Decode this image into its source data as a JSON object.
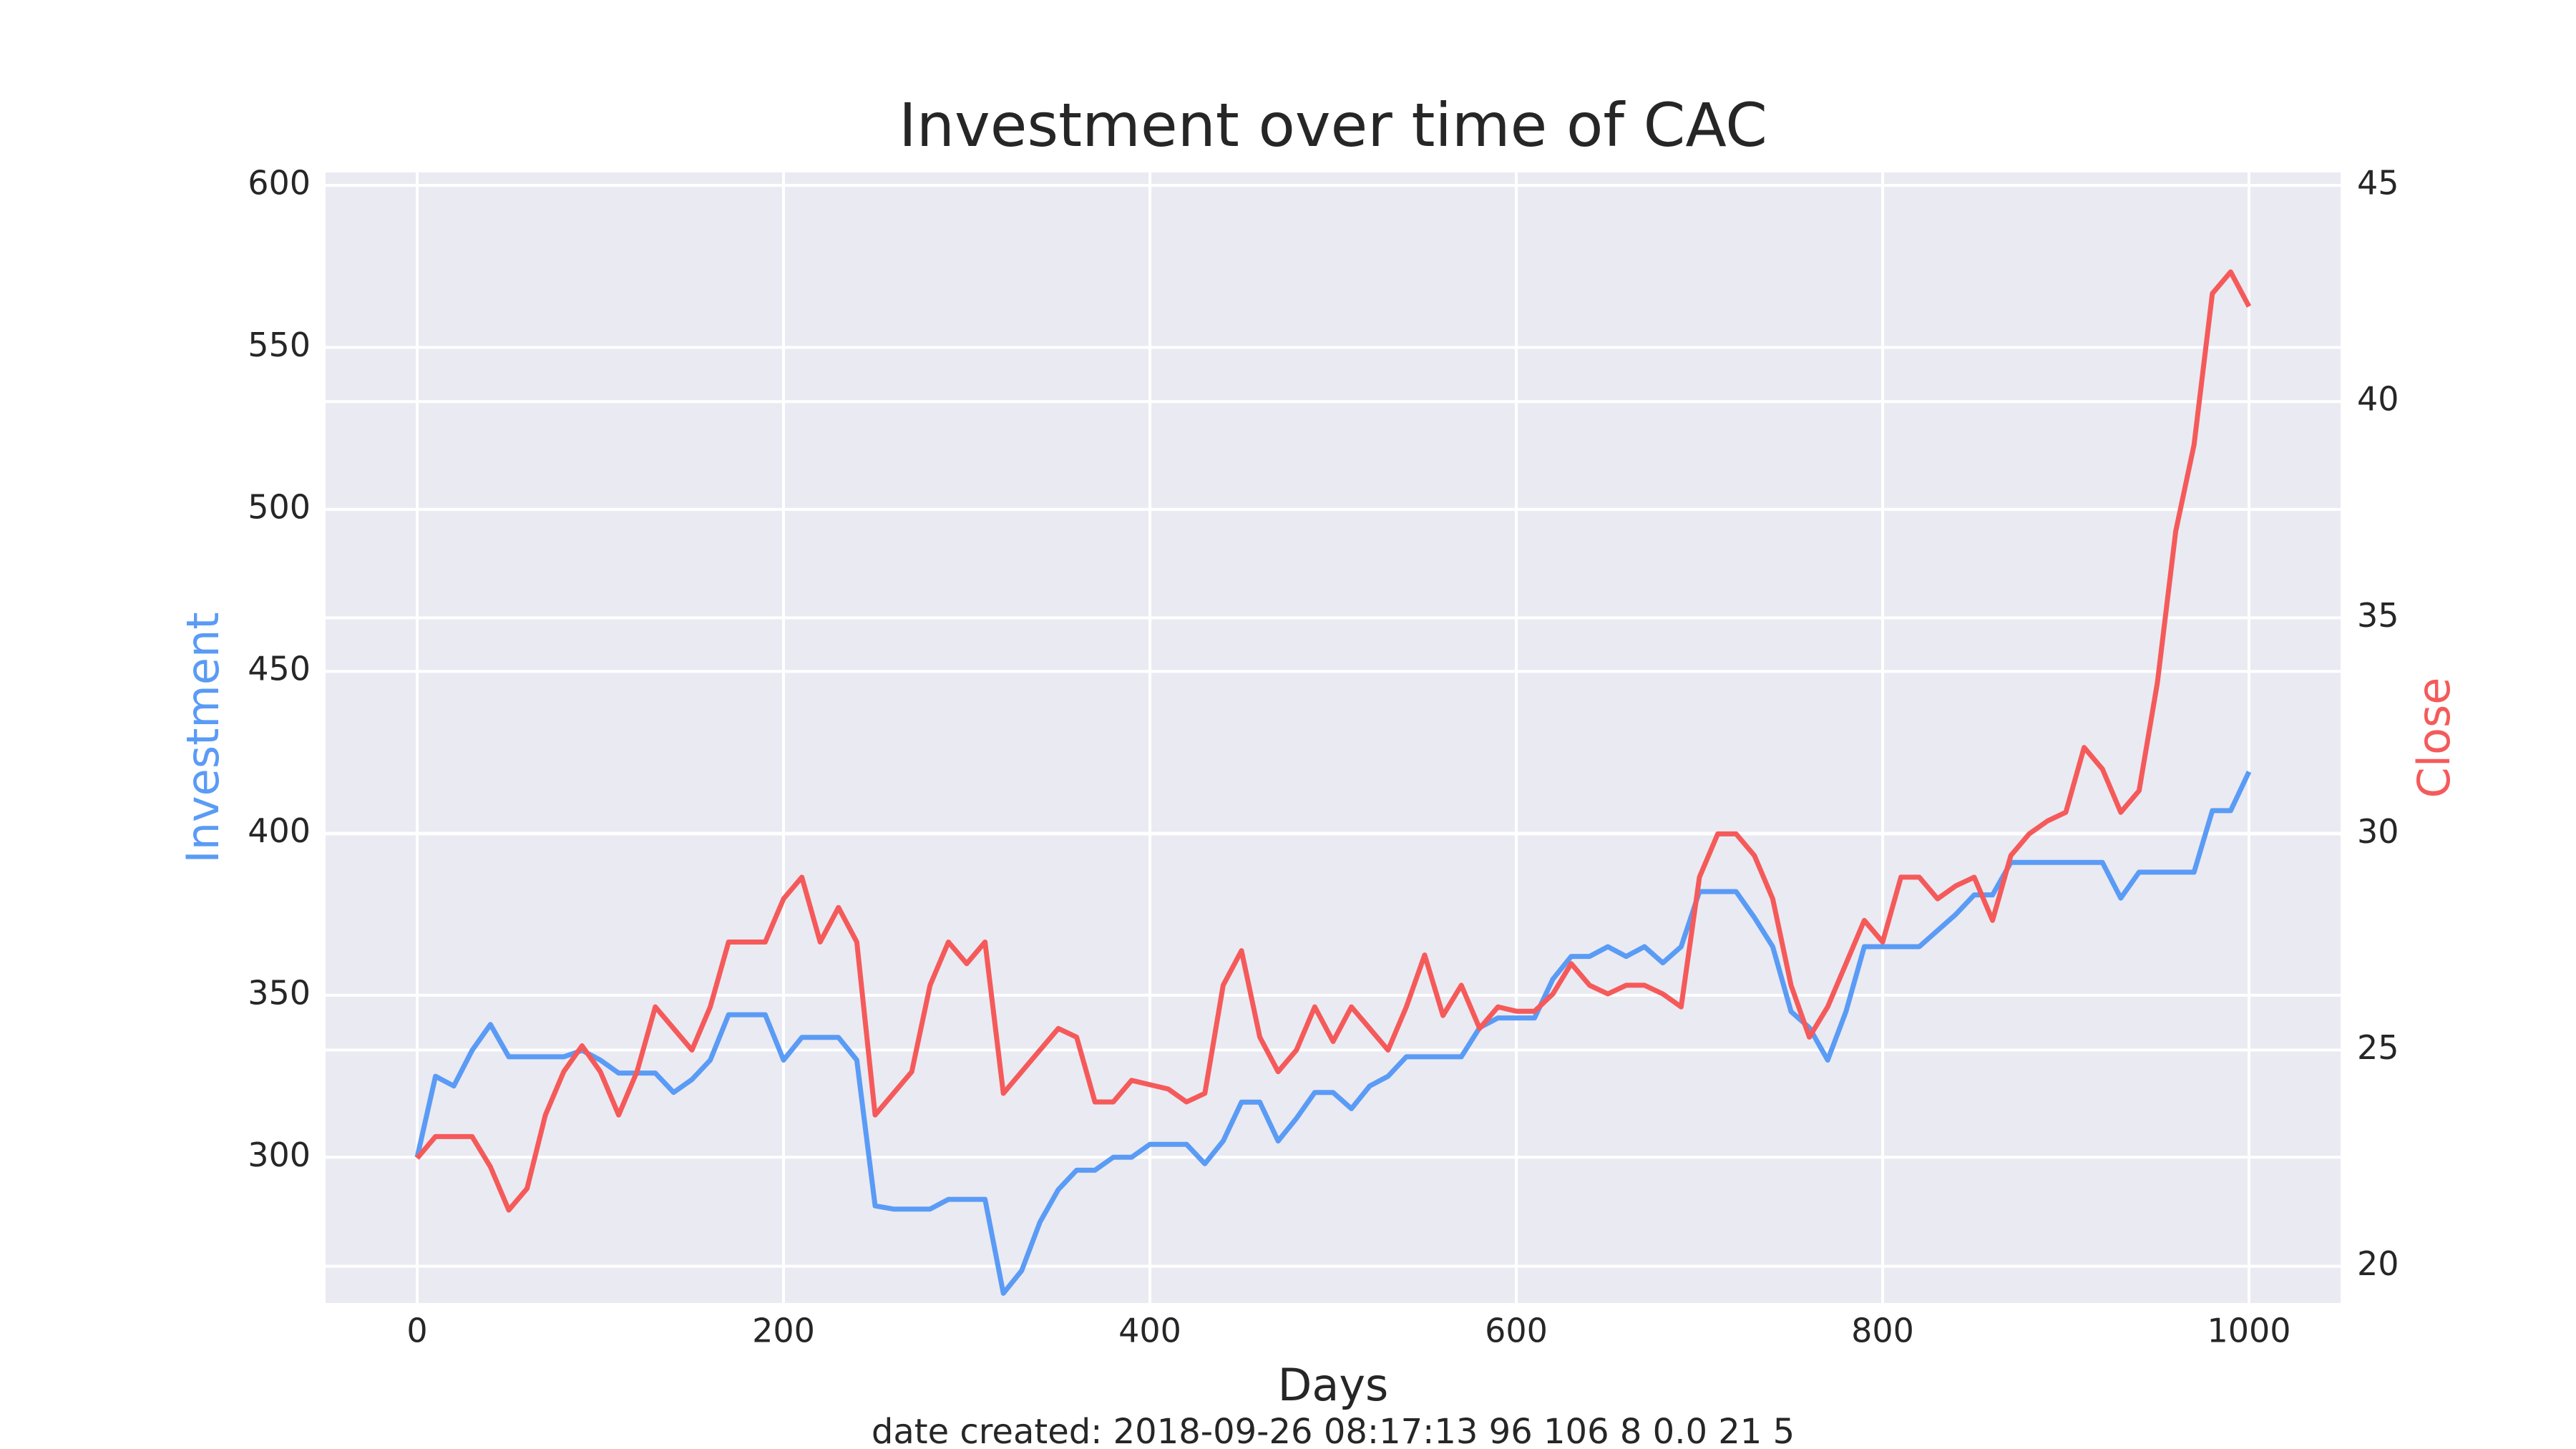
{
  "chart_data": {
    "type": "line",
    "title": "Investment over time of CAC",
    "x_label": "Days",
    "y_label": "Investment",
    "y2_label": "Close",
    "footnote": "date created: 2018-09-26 08:17:13 96 106 8 0.0 21 5",
    "x": [
      0,
      10,
      20,
      30,
      40,
      50,
      60,
      70,
      80,
      90,
      100,
      110,
      120,
      130,
      140,
      150,
      160,
      170,
      180,
      190,
      200,
      210,
      220,
      230,
      240,
      250,
      260,
      270,
      280,
      290,
      300,
      310,
      320,
      330,
      340,
      350,
      360,
      370,
      380,
      390,
      400,
      410,
      420,
      430,
      440,
      450,
      460,
      470,
      480,
      490,
      500,
      510,
      520,
      530,
      540,
      550,
      560,
      570,
      580,
      590,
      600,
      610,
      620,
      630,
      640,
      650,
      660,
      670,
      680,
      690,
      700,
      710,
      720,
      730,
      740,
      750,
      760,
      770,
      780,
      790,
      800,
      810,
      820,
      830,
      840,
      850,
      860,
      870,
      880,
      890,
      900,
      910,
      920,
      930,
      940,
      950,
      960,
      970,
      980,
      990,
      1000
    ],
    "series": [
      {
        "name": "Investment",
        "color": "#5a9bf5",
        "axis": "y",
        "values": [
          300,
          325,
          322,
          333,
          341,
          331,
          331,
          331,
          331,
          333,
          330,
          326,
          326,
          326,
          320,
          324,
          330,
          344,
          344,
          344,
          330,
          337,
          337,
          337,
          330,
          285,
          284,
          284,
          284,
          287,
          287,
          287,
          258,
          265,
          280,
          290,
          296,
          296,
          300,
          300,
          304,
          304,
          304,
          298,
          305,
          317,
          317,
          305,
          312,
          320,
          320,
          315,
          322,
          325,
          331,
          331,
          331,
          331,
          340,
          343,
          343,
          343,
          355,
          362,
          362,
          365,
          362,
          365,
          360,
          365,
          382,
          382,
          382,
          374,
          365,
          345,
          340,
          330,
          345,
          365,
          365,
          365,
          365,
          370,
          375,
          381,
          381,
          391,
          391,
          391,
          391,
          391,
          391,
          380,
          388,
          388,
          388,
          388,
          407,
          407,
          419
        ]
      },
      {
        "name": "Close",
        "color": "#f55a5a",
        "axis": "y2",
        "values": [
          22.5,
          23,
          23,
          23,
          22.3,
          21.3,
          21.8,
          23.5,
          24.5,
          25.1,
          24.5,
          23.5,
          24.5,
          26,
          25.5,
          25,
          26,
          27.5,
          27.5,
          27.5,
          28.5,
          29,
          27.5,
          28.3,
          27.5,
          23.5,
          24,
          24.5,
          26.5,
          27.5,
          27,
          27.5,
          24,
          24.5,
          25,
          25.5,
          25.3,
          23.8,
          23.8,
          24.3,
          24.2,
          24.1,
          23.8,
          24,
          26.5,
          27.3,
          25.3,
          24.5,
          25,
          26,
          25.2,
          26,
          25.5,
          25,
          26,
          27.2,
          25.8,
          26.5,
          25.5,
          26,
          25.9,
          25.9,
          26.3,
          27,
          26.5,
          26.3,
          26.5,
          26.5,
          26.3,
          26,
          29,
          30,
          30,
          29.5,
          28.5,
          26.5,
          25.3,
          26,
          27,
          28,
          27.5,
          29,
          29,
          28.5,
          28.8,
          29,
          28,
          29.5,
          30,
          30.3,
          30.5,
          32,
          31.5,
          30.5,
          31,
          33.5,
          37,
          39,
          42.5,
          43,
          42.2
        ]
      }
    ],
    "xlim": [
      -50,
      1050
    ],
    "xticks": [
      0,
      200,
      400,
      600,
      800,
      1000
    ],
    "ylim": [
      255,
      604
    ],
    "yticks": [
      300,
      350,
      400,
      450,
      500,
      550,
      600
    ],
    "y2lim": [
      19.15,
      45.3
    ],
    "y2ticks": [
      20,
      25,
      30,
      35,
      40,
      45
    ],
    "grid": true
  }
}
